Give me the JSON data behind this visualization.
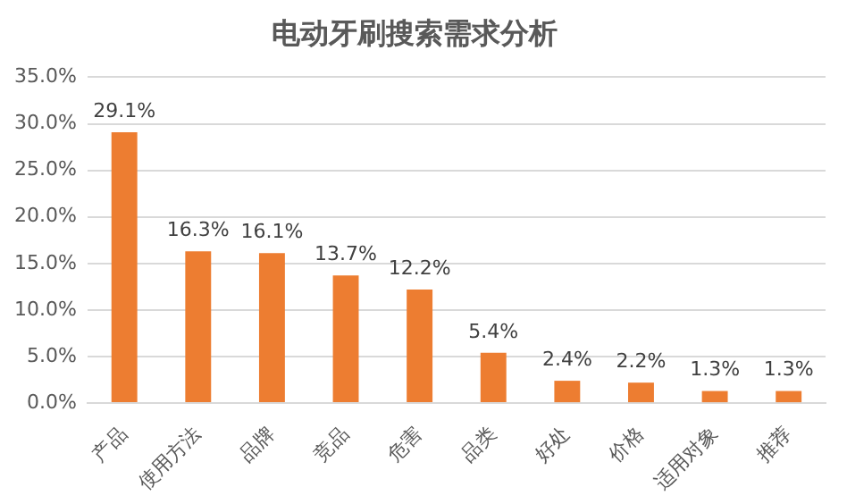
{
  "chart_data": {
    "type": "bar",
    "title": "电动牙刷搜索需求分析",
    "categories": [
      "产品",
      "使用方法",
      "品牌",
      "竞品",
      "危害",
      "品类",
      "好处",
      "价格",
      "适用对象",
      "推荐"
    ],
    "values": [
      29.1,
      16.3,
      16.1,
      13.7,
      12.2,
      5.4,
      2.4,
      2.2,
      1.3,
      1.3
    ],
    "value_labels": [
      "29.1%",
      "16.3%",
      "16.1%",
      "13.7%",
      "12.2%",
      "5.4%",
      "2.4%",
      "2.2%",
      "1.3%",
      "1.3%"
    ],
    "color": "#ed7d31",
    "ylim": [
      0,
      35
    ],
    "yticks": [
      {
        "value": 0,
        "label": "0.0%"
      },
      {
        "value": 5,
        "label": "5.0%"
      },
      {
        "value": 10,
        "label": "10.0%"
      },
      {
        "value": 15,
        "label": "15.0%"
      },
      {
        "value": 20,
        "label": "20.0%"
      },
      {
        "value": 25,
        "label": "25.0%"
      },
      {
        "value": 30,
        "label": "30.0%"
      },
      {
        "value": 35,
        "label": "35.0%"
      }
    ],
    "grid": "y",
    "legend": false
  }
}
